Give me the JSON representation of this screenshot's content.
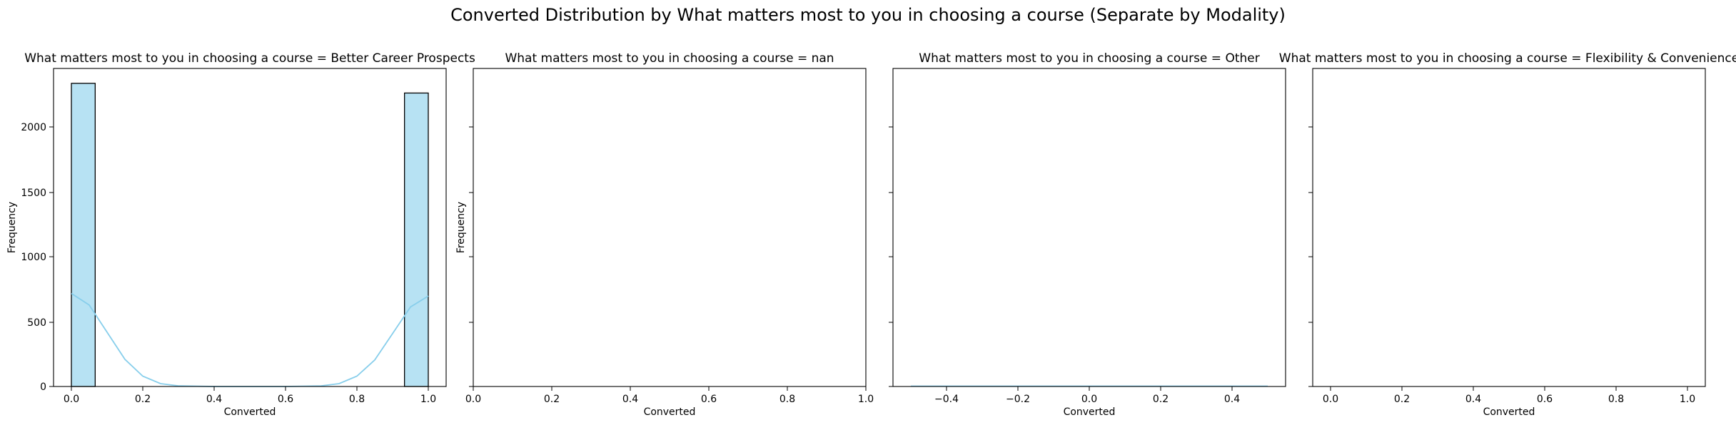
{
  "figure": {
    "title": "Converted Distribution by What matters most to you in choosing a course (Separate by Modality)"
  },
  "colors": {
    "bar_fill": "#87ceeb",
    "bar_edge": "#000000",
    "kde_line": "#87ceeb"
  },
  "chart_data": [
    {
      "type": "bar",
      "subtype": "histogram",
      "title": "What matters most to you in choosing a course = Better Career Prospects",
      "xlabel": "Converted",
      "ylabel": "Frequency",
      "xlim": [
        -0.05,
        1.05
      ],
      "ylim": [
        0,
        2460
      ],
      "xticks": [
        "0.0",
        "0.2",
        "0.4",
        "0.6",
        "0.8",
        "1.0"
      ],
      "yticks": [
        "0",
        "500",
        "1000",
        "1500",
        "2000"
      ],
      "bins": [
        {
          "x0": 0.0,
          "x1": 0.0667,
          "count": 2345
        },
        {
          "x0": 0.9333,
          "x1": 1.0,
          "count": 2270
        }
      ],
      "kde": {
        "x": [
          0.0,
          0.05,
          0.1,
          0.15,
          0.2,
          0.25,
          0.3,
          0.4,
          0.5,
          0.6,
          0.7,
          0.75,
          0.8,
          0.85,
          0.9,
          0.95,
          1.0
        ],
        "y": [
          720,
          630,
          420,
          210,
          80,
          22,
          5,
          0,
          0,
          0,
          5,
          22,
          80,
          205,
          410,
          615,
          700
        ]
      }
    },
    {
      "type": "bar",
      "subtype": "histogram",
      "title": "What matters most to you in choosing a course = nan",
      "xlabel": "Converted",
      "ylabel": "Frequency",
      "xlim": [
        0,
        1
      ],
      "ylim": [
        0,
        2460
      ],
      "xticks": [
        "0.0",
        "0.2",
        "0.4",
        "0.6",
        "0.8",
        "1.0"
      ],
      "yticks": [],
      "bins": []
    },
    {
      "type": "bar",
      "subtype": "histogram",
      "title": "What matters most to you in choosing a course = Other",
      "xlabel": "Converted",
      "ylabel": "",
      "xlim": [
        -0.55,
        0.55
      ],
      "ylim": [
        0,
        2460
      ],
      "xticks": [
        "−0.4",
        "−0.2",
        "0.0",
        "0.2",
        "0.4"
      ],
      "yticks": [],
      "bins": []
    },
    {
      "type": "bar",
      "subtype": "histogram",
      "title": "What matters most to you in choosing a course = Flexibility & Convenience",
      "xlabel": "Converted",
      "ylabel": "",
      "xlim": [
        -0.05,
        1.05
      ],
      "ylim": [
        0,
        2460
      ],
      "xticks": [
        "0.0",
        "0.2",
        "0.4",
        "0.6",
        "0.8",
        "1.0"
      ],
      "yticks": [],
      "bins": []
    }
  ]
}
